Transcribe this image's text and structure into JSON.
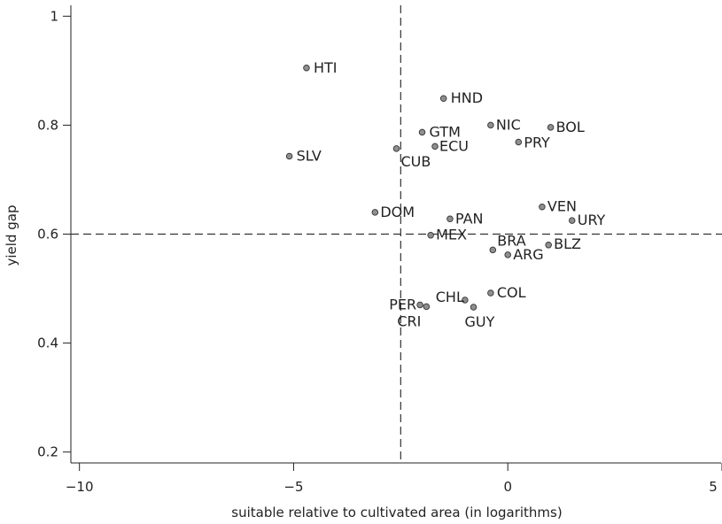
{
  "chart_data": {
    "type": "scatter",
    "xlabel": "suitable relative to cultivated area (in logarithms)",
    "ylabel": "yield gap",
    "xlim": [
      -10.2,
      5
    ],
    "ylim": [
      0.18,
      1.02
    ],
    "x_ticks": [
      -10,
      -5,
      0,
      5
    ],
    "x_tick_labels": [
      "−10",
      "−5",
      "0",
      "5"
    ],
    "y_ticks": [
      0.2,
      0.4,
      0.6,
      0.8,
      1
    ],
    "y_tick_labels": [
      "0.2",
      "0.4",
      "0.6",
      "0.8",
      "1"
    ],
    "reference_lines": {
      "x": -2.5,
      "y": 0.6
    },
    "grid": false,
    "points": [
      {
        "label": "HTI",
        "x": -4.7,
        "y": 0.905
      },
      {
        "label": "HND",
        "x": -1.5,
        "y": 0.849
      },
      {
        "label": "NIC",
        "x": -0.4,
        "y": 0.8
      },
      {
        "label": "BOL",
        "x": 1.0,
        "y": 0.796
      },
      {
        "label": "GTM",
        "x": -2.0,
        "y": 0.787
      },
      {
        "label": "PRY",
        "x": 0.25,
        "y": 0.769
      },
      {
        "label": "ECU",
        "x": -1.7,
        "y": 0.761
      },
      {
        "label": "CUB",
        "x": -2.6,
        "y": 0.757
      },
      {
        "label": "SLV",
        "x": -5.1,
        "y": 0.743
      },
      {
        "label": "VEN",
        "x": 0.8,
        "y": 0.65
      },
      {
        "label": "DOM",
        "x": -3.1,
        "y": 0.64
      },
      {
        "label": "PAN",
        "x": -1.35,
        "y": 0.628
      },
      {
        "label": "URY",
        "x": 1.5,
        "y": 0.625
      },
      {
        "label": "MEX",
        "x": -1.8,
        "y": 0.598
      },
      {
        "label": "BLZ",
        "x": 0.95,
        "y": 0.58
      },
      {
        "label": "BRA",
        "x": -0.35,
        "y": 0.571
      },
      {
        "label": "ARG",
        "x": 0.0,
        "y": 0.562
      },
      {
        "label": "COL",
        "x": -0.4,
        "y": 0.492
      },
      {
        "label": "CHL",
        "x": -1.0,
        "y": 0.479
      },
      {
        "label": "PER",
        "x": -2.05,
        "y": 0.47
      },
      {
        "label": "CRI",
        "x": -1.9,
        "y": 0.467
      },
      {
        "label": "GUY",
        "x": -0.8,
        "y": 0.466
      }
    ]
  }
}
